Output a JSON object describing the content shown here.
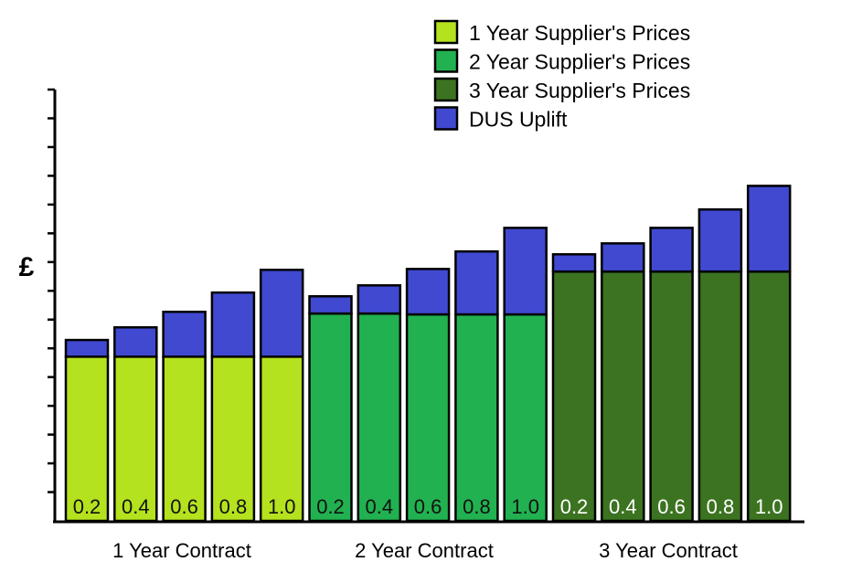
{
  "chart_data": {
    "type": "bar",
    "stacked": true,
    "title": "",
    "xlabel": "",
    "ylabel": "£",
    "ylim": [
      0,
      15
    ],
    "y_ticks_labeled": false,
    "grid": false,
    "legend_position": "top-right",
    "groups": [
      "1 Year Contract",
      "2 Year Contract",
      "3 Year Contract"
    ],
    "categories": [
      "0.2",
      "0.4",
      "0.6",
      "0.8",
      "1.0",
      "0.2",
      "0.4",
      "0.6",
      "0.8",
      "1.0",
      "0.2",
      "0.4",
      "0.6",
      "0.8",
      "1.0"
    ],
    "bar_group": [
      0,
      0,
      0,
      0,
      0,
      1,
      1,
      1,
      1,
      1,
      2,
      2,
      2,
      2,
      2
    ],
    "series": [
      {
        "name": "1 Year Supplier's Prices",
        "color": "#b5e21e",
        "label_color": "#111111",
        "values": [
          5.71,
          5.71,
          5.71,
          5.71,
          5.71,
          null,
          null,
          null,
          null,
          null,
          null,
          null,
          null,
          null,
          null
        ]
      },
      {
        "name": "2 Year Supplier's Prices",
        "color": "#22b150",
        "label_color": "#111111",
        "values": [
          null,
          null,
          null,
          null,
          null,
          7.21,
          7.21,
          7.18,
          7.18,
          7.18,
          null,
          null,
          null,
          null,
          null
        ]
      },
      {
        "name": "3 Year Supplier's Prices",
        "color": "#3c7321",
        "label_color": "#ffffff",
        "values": [
          null,
          null,
          null,
          null,
          null,
          null,
          null,
          null,
          null,
          null,
          8.67,
          8.67,
          8.67,
          8.67,
          8.67
        ]
      },
      {
        "name": "DUS Uplift",
        "color": "#4049d0",
        "values": [
          0.58,
          1.02,
          1.56,
          2.23,
          3.02,
          0.6,
          0.98,
          1.58,
          2.19,
          3.01,
          0.6,
          0.98,
          1.52,
          2.16,
          2.98
        ]
      }
    ]
  }
}
